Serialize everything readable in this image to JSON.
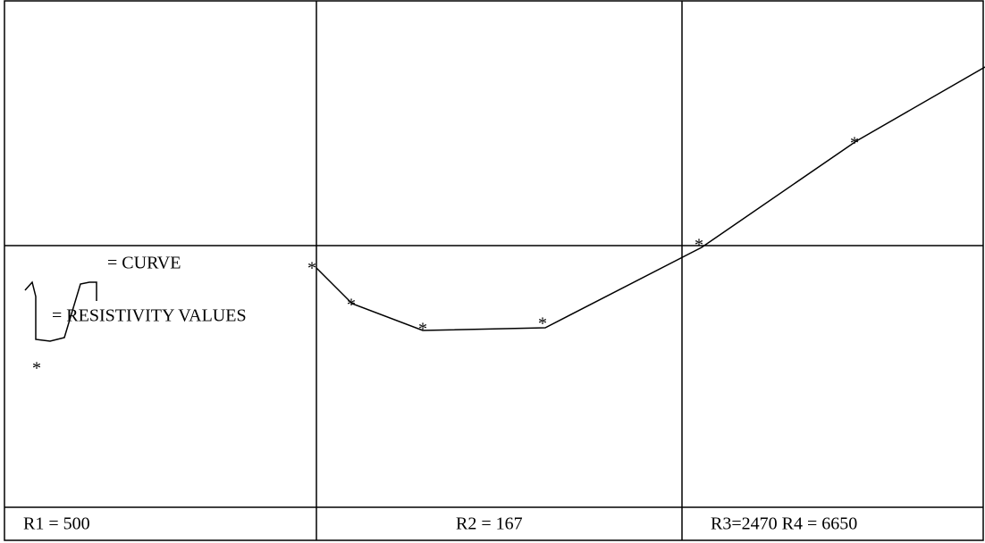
{
  "legend": {
    "curve": "= CURVE",
    "resistivity": "= RESISTIVITY VALUES",
    "marker": "*"
  },
  "layers": [
    "R1 = 500",
    "R2 = 167",
    "R3=2470 R4 = 6650"
  ]
}
